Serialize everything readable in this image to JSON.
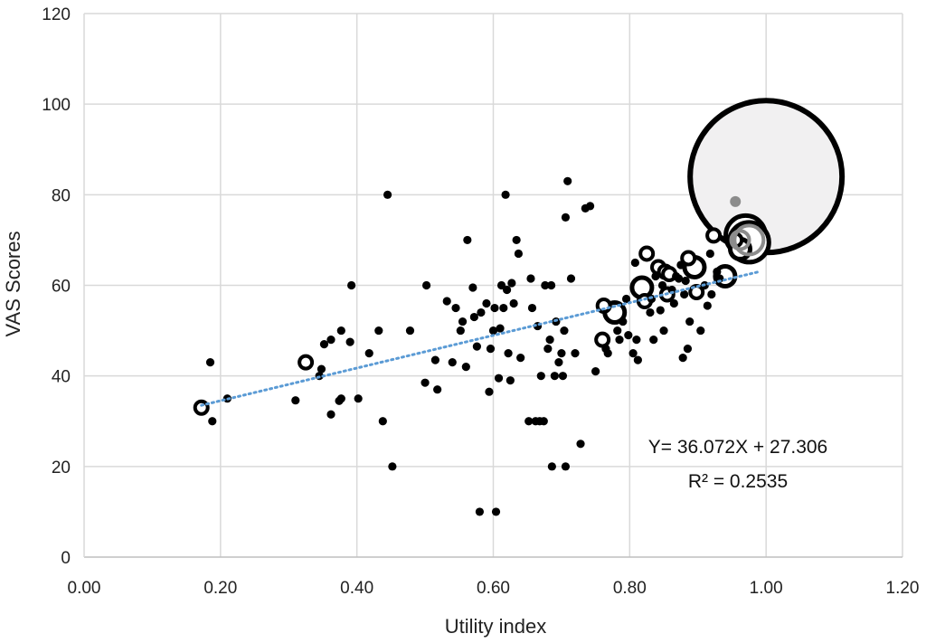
{
  "chart_data": {
    "type": "scatter",
    "title": "",
    "xlabel": "Utility index",
    "ylabel": "VAS Scores",
    "xlim": [
      0,
      1.2
    ],
    "ylim": [
      0,
      120
    ],
    "x_ticks": [
      "0.00",
      "0.20",
      "0.40",
      "0.60",
      "0.80",
      "1.00",
      "1.20"
    ],
    "y_ticks": [
      "0",
      "20",
      "40",
      "60",
      "80",
      "100",
      "120"
    ],
    "grid": true,
    "legend": "none",
    "series": [
      {
        "marker": "bubble",
        "color": "#111111",
        "points": [
          [
            0.172,
            33,
            2
          ],
          [
            0.185,
            43,
            1
          ],
          [
            0.188,
            30,
            1
          ],
          [
            0.21,
            35,
            1
          ],
          [
            0.31,
            34.6,
            1
          ],
          [
            0.325,
            43,
            2
          ],
          [
            0.345,
            40,
            1
          ],
          [
            0.348,
            41.5,
            1
          ],
          [
            0.352,
            47,
            1
          ],
          [
            0.362,
            48,
            1
          ],
          [
            0.362,
            31.5,
            1
          ],
          [
            0.374,
            34.5,
            1
          ],
          [
            0.377,
            35,
            1
          ],
          [
            0.377,
            50,
            1
          ],
          [
            0.39,
            47.5,
            1
          ],
          [
            0.392,
            60,
            1
          ],
          [
            0.402,
            35,
            1
          ],
          [
            0.418,
            45,
            1
          ],
          [
            0.432,
            50,
            1
          ],
          [
            0.438,
            30,
            1
          ],
          [
            0.445,
            80,
            1
          ],
          [
            0.452,
            20,
            1
          ],
          [
            0.478,
            50,
            1
          ],
          [
            0.5,
            38.5,
            1
          ],
          [
            0.502,
            60,
            1
          ],
          [
            0.515,
            43.5,
            1
          ],
          [
            0.518,
            37,
            1
          ],
          [
            0.532,
            56.5,
            1
          ],
          [
            0.54,
            43,
            1
          ],
          [
            0.545,
            55,
            1
          ],
          [
            0.552,
            50,
            1
          ],
          [
            0.555,
            52,
            1
          ],
          [
            0.56,
            42,
            1
          ],
          [
            0.562,
            70,
            1
          ],
          [
            0.57,
            59.5,
            1
          ],
          [
            0.572,
            53,
            1
          ],
          [
            0.576,
            46.5,
            1
          ],
          [
            0.58,
            10,
            1
          ],
          [
            0.582,
            54,
            1
          ],
          [
            0.59,
            56,
            1
          ],
          [
            0.594,
            36.5,
            1
          ],
          [
            0.596,
            46,
            1
          ],
          [
            0.6,
            50,
            1
          ],
          [
            0.602,
            55,
            1
          ],
          [
            0.604,
            10,
            1
          ],
          [
            0.608,
            39.5,
            1
          ],
          [
            0.61,
            50.5,
            1
          ],
          [
            0.612,
            60,
            1
          ],
          [
            0.615,
            55,
            1
          ],
          [
            0.618,
            80,
            1
          ],
          [
            0.62,
            59,
            1
          ],
          [
            0.622,
            45,
            1
          ],
          [
            0.625,
            39,
            1
          ],
          [
            0.627,
            60.5,
            1
          ],
          [
            0.63,
            56,
            1
          ],
          [
            0.634,
            70,
            1
          ],
          [
            0.637,
            67,
            1
          ],
          [
            0.64,
            44,
            1
          ],
          [
            0.652,
            30,
            1
          ],
          [
            0.655,
            61.5,
            1
          ],
          [
            0.657,
            55,
            1
          ],
          [
            0.662,
            30,
            1
          ],
          [
            0.665,
            51,
            1
          ],
          [
            0.668,
            30,
            1
          ],
          [
            0.67,
            40,
            1
          ],
          [
            0.674,
            30,
            1
          ],
          [
            0.676,
            60,
            1
          ],
          [
            0.68,
            46,
            1
          ],
          [
            0.683,
            48,
            1
          ],
          [
            0.685,
            60,
            1
          ],
          [
            0.686,
            20,
            1
          ],
          [
            0.69,
            40,
            1
          ],
          [
            0.692,
            52,
            1
          ],
          [
            0.696,
            43,
            1
          ],
          [
            0.7,
            45,
            1
          ],
          [
            0.702,
            40,
            1
          ],
          [
            0.704,
            50,
            1
          ],
          [
            0.706,
            75,
            1
          ],
          [
            0.706,
            20,
            1
          ],
          [
            0.709,
            83,
            1
          ],
          [
            0.714,
            61.5,
            1
          ],
          [
            0.72,
            45,
            1
          ],
          [
            0.728,
            25,
            1
          ],
          [
            0.735,
            77,
            1
          ],
          [
            0.742,
            77.5,
            1
          ],
          [
            0.75,
            41,
            1
          ],
          [
            0.76,
            48,
            2
          ],
          [
            0.762,
            55.5,
            2
          ],
          [
            0.765,
            46,
            1
          ],
          [
            0.768,
            45,
            1
          ],
          [
            0.778,
            54,
            3
          ],
          [
            0.782,
            50,
            1
          ],
          [
            0.785,
            48,
            1
          ],
          [
            0.79,
            52,
            1
          ],
          [
            0.795,
            57,
            1
          ],
          [
            0.798,
            49,
            1
          ],
          [
            0.805,
            45,
            1
          ],
          [
            0.808,
            65,
            1
          ],
          [
            0.81,
            48,
            1
          ],
          [
            0.812,
            43.5,
            1
          ],
          [
            0.818,
            59.5,
            3
          ],
          [
            0.822,
            56.5,
            2
          ],
          [
            0.825,
            67,
            2
          ],
          [
            0.83,
            54,
            1
          ],
          [
            0.832,
            57,
            1
          ],
          [
            0.835,
            48,
            1
          ],
          [
            0.838,
            62,
            1
          ],
          [
            0.842,
            64,
            2
          ],
          [
            0.845,
            54.5,
            1
          ],
          [
            0.848,
            60,
            1
          ],
          [
            0.85,
            50,
            1
          ],
          [
            0.852,
            63,
            2
          ],
          [
            0.855,
            58,
            2
          ],
          [
            0.858,
            62.5,
            2
          ],
          [
            0.862,
            59,
            1
          ],
          [
            0.865,
            56,
            1
          ],
          [
            0.868,
            62,
            1
          ],
          [
            0.872,
            61.5,
            1
          ],
          [
            0.875,
            64.5,
            1
          ],
          [
            0.878,
            44,
            1
          ],
          [
            0.88,
            58,
            1
          ],
          [
            0.882,
            61,
            1
          ],
          [
            0.885,
            46,
            1
          ],
          [
            0.886,
            66,
            2
          ],
          [
            0.888,
            52,
            1
          ],
          [
            0.895,
            64,
            3
          ],
          [
            0.898,
            58.5,
            2
          ],
          [
            0.904,
            50,
            1
          ],
          [
            0.91,
            60,
            1
          ],
          [
            0.914,
            55.5,
            1
          ],
          [
            0.918,
            67,
            1
          ],
          [
            0.92,
            58,
            1
          ],
          [
            0.923,
            71,
            2
          ],
          [
            0.928,
            63,
            1
          ],
          [
            0.932,
            61.5,
            1
          ],
          [
            0.94,
            62,
            3
          ],
          [
            0.955,
            70,
            2
          ],
          [
            0.962,
            68,
            3
          ],
          [
            0.97,
            71,
            4
          ],
          [
            0.975,
            69.5,
            4
          ],
          [
            1.0,
            84,
            5
          ]
        ]
      },
      {
        "marker": "trendline",
        "style": "dotted",
        "color": "#5b9bd5",
        "x": [
          0.172,
          0.99
        ],
        "equation": "Y= 36.072X + 27.306",
        "slope": 36.072,
        "intercept": 27.306,
        "r2": "R² = 0.2535"
      }
    ],
    "annotations": [
      "Y= 36.072X + 27.306",
      "R² = 0.2535"
    ]
  }
}
